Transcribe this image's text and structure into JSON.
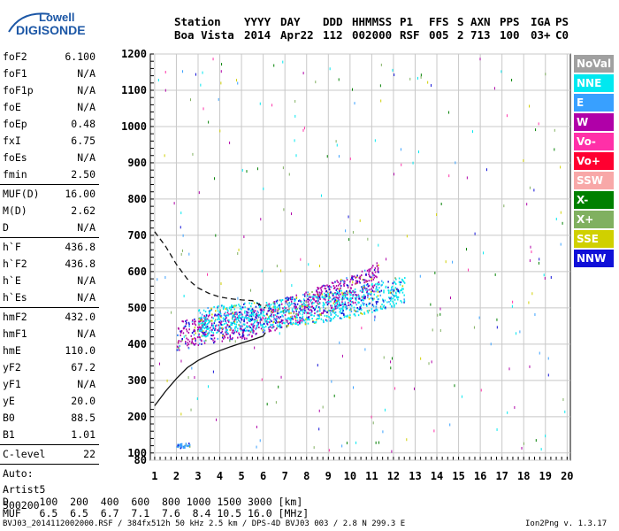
{
  "logo": {
    "line1": "Lowell",
    "line2": "DIGISONDE"
  },
  "header": {
    "labels": [
      "Station",
      "YYYY",
      "DAY",
      "DDD",
      "HHMMSS",
      "P1",
      "FFS",
      "S",
      "AXN",
      "PPS",
      "IGA",
      "PS"
    ],
    "values": [
      "Boa Vista",
      "2014",
      "Apr22",
      "112",
      "002000",
      "RSF",
      "005",
      "2",
      "713",
      "100",
      "03+",
      "C0"
    ]
  },
  "params": {
    "group1": [
      {
        "k": "foF2",
        "v": "6.100"
      },
      {
        "k": "foF1",
        "v": "N/A"
      },
      {
        "k": "foF1p",
        "v": "N/A"
      },
      {
        "k": "foE",
        "v": "N/A"
      },
      {
        "k": "foEp",
        "v": "0.48"
      },
      {
        "k": "fxI",
        "v": "6.75"
      },
      {
        "k": "foEs",
        "v": "N/A"
      },
      {
        "k": "fmin",
        "v": "2.50"
      }
    ],
    "group2": [
      {
        "k": "MUF(D)",
        "v": "16.00"
      },
      {
        "k": "M(D)",
        "v": "2.62"
      },
      {
        "k": "D",
        "v": "N/A"
      }
    ],
    "group3": [
      {
        "k": "h`F",
        "v": "436.8"
      },
      {
        "k": "h`F2",
        "v": "436.8"
      },
      {
        "k": "h`E",
        "v": "N/A"
      },
      {
        "k": "h`Es",
        "v": "N/A"
      }
    ],
    "group4": [
      {
        "k": "hmF2",
        "v": "432.0"
      },
      {
        "k": "hmF1",
        "v": "N/A"
      },
      {
        "k": "hmE",
        "v": "110.0"
      },
      {
        "k": "yF2",
        "v": "67.2"
      },
      {
        "k": "yF1",
        "v": "N/A"
      },
      {
        "k": "yE",
        "v": "20.0"
      },
      {
        "k": "B0",
        "v": "88.5"
      },
      {
        "k": "B1",
        "v": "1.01"
      }
    ],
    "group5": [
      {
        "k": "C-level",
        "v": "22"
      }
    ]
  },
  "auto": {
    "line1": "Auto:",
    "line2": "Artist5",
    "line3": "500200"
  },
  "legend": [
    {
      "label": "NoVal",
      "color": "#a0a0a0"
    },
    {
      "label": "NNE",
      "color": "#00e8f0"
    },
    {
      "label": "E",
      "color": "#38a0ff"
    },
    {
      "label": "W",
      "color": "#b000a8"
    },
    {
      "label": "Vo-",
      "color": "#ff30a8"
    },
    {
      "label": "Vo+",
      "color": "#ff0030"
    },
    {
      "label": "SSW",
      "color": "#f8a8a8"
    },
    {
      "label": "X-",
      "color": "#008000"
    },
    {
      "label": "X+",
      "color": "#80b060"
    },
    {
      "label": "SSE",
      "color": "#d0d000"
    },
    {
      "label": "NNW",
      "color": "#1010d8"
    }
  ],
  "mufTable": {
    "dLabel": "D",
    "dValues": [
      "100",
      "200",
      "400",
      "600",
      "800",
      "1000",
      "1500",
      "3000"
    ],
    "dUnit": "[km]",
    "mLabel": "MUF",
    "mValues": [
      "6.5",
      "6.5",
      "6.7",
      "7.1",
      "7.6",
      "8.4",
      "10.5",
      "16.0"
    ],
    "mUnit": "[MHz]"
  },
  "footer": {
    "left": "BVJ03_2014112002000.RSF / 384fx512h 50 kHz 2.5 km / DPS-4D BVJ03 003 / 2.8 N 299.3 E",
    "right": "Ion2Png v. 1.3.17"
  },
  "chart_data": {
    "type": "scatter",
    "x_ticks": [
      1,
      2,
      3,
      4,
      5,
      6,
      7,
      8,
      9,
      10,
      11,
      12,
      13,
      14,
      15,
      16,
      17,
      18,
      19,
      20
    ],
    "y_ticks": [
      80,
      100,
      200,
      300,
      400,
      500,
      600,
      700,
      800,
      900,
      1000,
      1100,
      1200
    ],
    "xlim": [
      0.8,
      20.15
    ],
    "ylim": [
      80,
      1200
    ],
    "grid": true,
    "legend_placement": "right",
    "echo_traces": [
      {
        "name": "o-trace",
        "direction": "W",
        "points": [
          [
            2.0,
            425
          ],
          [
            2.5,
            430
          ],
          [
            3.0,
            440
          ],
          [
            3.5,
            445
          ],
          [
            4.0,
            448
          ],
          [
            4.5,
            450
          ],
          [
            5.0,
            455
          ],
          [
            5.5,
            460
          ],
          [
            6.0,
            470
          ],
          [
            6.5,
            480
          ],
          [
            7.0,
            490
          ],
          [
            7.5,
            500
          ],
          [
            8.0,
            510
          ],
          [
            8.5,
            520
          ],
          [
            9.0,
            530
          ],
          [
            9.5,
            540
          ],
          [
            10.0,
            550
          ],
          [
            10.5,
            565
          ],
          [
            11.0,
            580
          ],
          [
            11.3,
            600
          ]
        ]
      },
      {
        "name": "o-trace-low",
        "direction": "NNE",
        "points": [
          [
            3.0,
            460
          ],
          [
            4.0,
            470
          ],
          [
            5.0,
            475
          ],
          [
            6.0,
            480
          ],
          [
            7.0,
            490
          ],
          [
            8.0,
            495
          ],
          [
            9.0,
            505
          ],
          [
            10.0,
            515
          ],
          [
            11.0,
            530
          ],
          [
            12.0,
            545
          ],
          [
            12.5,
            550
          ]
        ]
      },
      {
        "name": "E-layer",
        "direction": "E",
        "points": [
          [
            2.0,
            120
          ],
          [
            2.3,
            122
          ],
          [
            2.6,
            125
          ]
        ]
      }
    ],
    "profile": {
      "solid": [
        [
          1.0,
          230
        ],
        [
          1.5,
          270
        ],
        [
          2.0,
          305
        ],
        [
          2.5,
          335
        ],
        [
          3.0,
          355
        ],
        [
          3.5,
          370
        ],
        [
          4.0,
          382
        ],
        [
          4.5,
          393
        ],
        [
          5.0,
          403
        ],
        [
          5.5,
          412
        ],
        [
          6.0,
          422
        ],
        [
          6.1,
          432
        ]
      ],
      "dashed": [
        [
          1.0,
          710
        ],
        [
          1.5,
          670
        ],
        [
          2.0,
          620
        ],
        [
          2.5,
          580
        ],
        [
          3.0,
          555
        ],
        [
          3.5,
          540
        ],
        [
          4.0,
          530
        ],
        [
          4.5,
          525
        ],
        [
          5.0,
          522
        ],
        [
          5.5,
          520
        ],
        [
          6.1,
          500
        ]
      ]
    }
  }
}
